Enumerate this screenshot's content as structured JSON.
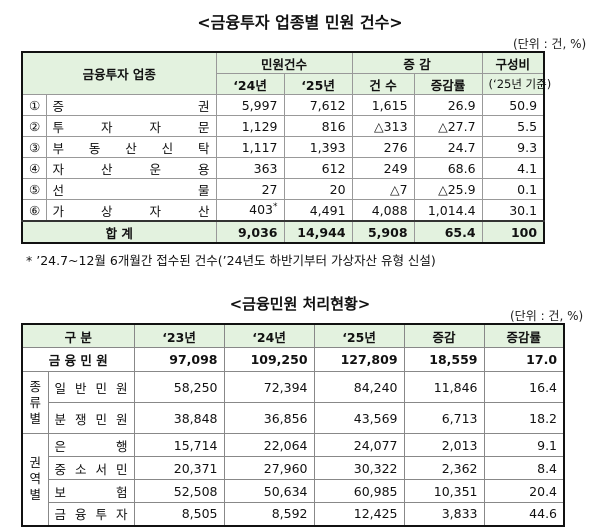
{
  "table1": {
    "title": "<금융투자 업종별 민원 건수>",
    "unit": "(단위 : 건, %)",
    "headers": {
      "category": "금융투자 업종",
      "complaints": "민원건수",
      "y24": "‘24년",
      "y25": "‘25년",
      "change": "증 감",
      "count": "건 수",
      "rate": "증감률",
      "share": "구성비",
      "share_basis": "(‘25년 기준)"
    },
    "rows": [
      {
        "no": "①",
        "name": [
          "증",
          "권"
        ],
        "y24": "5,997",
        "y25": "7,612",
        "count": "1,615",
        "rate": "26.9",
        "share": "50.9"
      },
      {
        "no": "②",
        "name": [
          "투",
          "자",
          "자",
          "문"
        ],
        "y24": "1,129",
        "y25": "816",
        "count": "△313",
        "rate": "△27.7",
        "share": "5.5"
      },
      {
        "no": "③",
        "name": [
          "부",
          "동",
          "산",
          "신",
          "탁"
        ],
        "y24": "1,117",
        "y25": "1,393",
        "count": "276",
        "rate": "24.7",
        "share": "9.3"
      },
      {
        "no": "④",
        "name": [
          "자",
          "산",
          "운",
          "용"
        ],
        "y24": "363",
        "y25": "612",
        "count": "249",
        "rate": "68.6",
        "share": "4.1"
      },
      {
        "no": "⑤",
        "name": [
          "선",
          "물"
        ],
        "y24": "27",
        "y25": "20",
        "count": "△7",
        "rate": "△25.9",
        "share": "0.1"
      },
      {
        "no": "⑥",
        "name": [
          "가",
          "상",
          "자",
          "산"
        ],
        "y24": "403*",
        "y25": "4,491",
        "count": "4,088",
        "rate": "1,014.4",
        "share": "30.1"
      }
    ],
    "total": {
      "label": "합    계",
      "y24": "9,036",
      "y25": "14,944",
      "count": "5,908",
      "rate": "65.4",
      "share": "100"
    },
    "footnote": "* ’24.7~12월 6개월간 접수된 건수(’24년도 하반기부터 가상자산 유형 신설)"
  },
  "table2": {
    "title": "<금융민원 처리현황>",
    "unit": "(단위 : 건, %)",
    "headers": {
      "category": "구    분",
      "y23": "‘23년",
      "y24": "‘24년",
      "y25": "‘25년",
      "change": "증감",
      "rate": "증감률"
    },
    "total": {
      "label": "금 융 민 원",
      "y23": "97,098",
      "y24": "109,250",
      "y25": "127,809",
      "change": "18,559",
      "rate": "17.0"
    },
    "group1": {
      "label": "종류별",
      "rows": [
        {
          "name": [
            "일",
            "반",
            "민",
            "원"
          ],
          "y23": "58,250",
          "y24": "72,394",
          "y25": "84,240",
          "change": "11,846",
          "rate": "16.4"
        },
        {
          "name": [
            "분",
            "쟁",
            "민",
            "원"
          ],
          "y23": "38,848",
          "y24": "36,856",
          "y25": "43,569",
          "change": "6,713",
          "rate": "18.2"
        }
      ]
    },
    "group2": {
      "label": "권역별",
      "rows": [
        {
          "name": [
            "은",
            "행"
          ],
          "y23": "15,714",
          "y24": "22,064",
          "y25": "24,077",
          "change": "2,013",
          "rate": "9.1"
        },
        {
          "name": [
            "중",
            "소",
            "서",
            "민"
          ],
          "y23": "20,371",
          "y24": "27,960",
          "y25": "30,322",
          "change": "2,362",
          "rate": "8.4"
        },
        {
          "name": [
            "보",
            "험"
          ],
          "y23": "52,508",
          "y24": "50,634",
          "y25": "60,985",
          "change": "10,351",
          "rate": "20.4"
        },
        {
          "name": [
            "금",
            "융",
            "투",
            "자"
          ],
          "y23": "8,505",
          "y24": "8,592",
          "y25": "12,425",
          "change": "3,833",
          "rate": "44.6"
        }
      ]
    }
  }
}
